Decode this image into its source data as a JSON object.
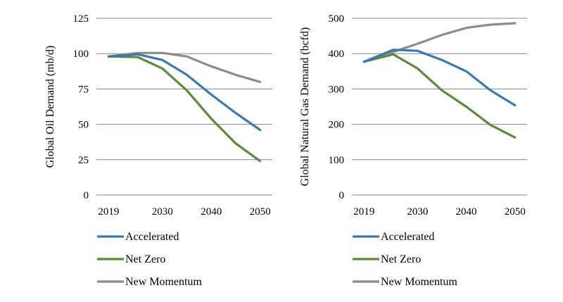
{
  "chart_data": [
    {
      "type": "line",
      "ylabel": "Global Oil Demand (mb/d)",
      "xlabel": "",
      "x": [
        2019,
        2025,
        2030,
        2035,
        2040,
        2045,
        2050
      ],
      "xticks": [
        "2019",
        "2030",
        "2040",
        "2050"
      ],
      "xtick_values": [
        2019,
        2030,
        2040,
        2050
      ],
      "xlim": [
        2016.5,
        2052.5
      ],
      "ylim": [
        0,
        125
      ],
      "yticks": [
        0,
        25,
        50,
        75,
        100,
        125
      ],
      "grid": "horizontal",
      "legend": "bottom",
      "series": [
        {
          "name": "Accelerated",
          "color": "#3C78B4",
          "values": [
            98,
            99.5,
            95.5,
            85,
            71,
            58,
            46
          ]
        },
        {
          "name": "Net Zero",
          "color": "#5B8A3A",
          "values": [
            98,
            97.5,
            89.5,
            74,
            54,
            36.5,
            24
          ]
        },
        {
          "name": "New Momentum",
          "color": "#8C8C8C",
          "values": [
            98,
            100.5,
            100.5,
            98,
            91,
            85,
            80
          ]
        }
      ]
    },
    {
      "type": "line",
      "ylabel": "Global Natural Gas Demand (bcfd)",
      "xlabel": "",
      "x": [
        2019,
        2025,
        2030,
        2035,
        2040,
        2045,
        2050
      ],
      "xticks": [
        "2019",
        "2030",
        "2040",
        "2050"
      ],
      "xtick_values": [
        2019,
        2030,
        2040,
        2050
      ],
      "xlim": [
        2016.5,
        2052.5
      ],
      "ylim": [
        0,
        500
      ],
      "yticks": [
        0,
        100,
        200,
        300,
        400,
        500
      ],
      "grid": "horizontal",
      "legend": "bottom",
      "series": [
        {
          "name": "Accelerated",
          "color": "#3C78B4",
          "values": [
            377,
            411,
            408,
            382,
            350,
            296,
            254
          ]
        },
        {
          "name": "Net Zero",
          "color": "#5B8A3A",
          "values": [
            377,
            398,
            358,
            296,
            250,
            198,
            163
          ]
        },
        {
          "name": "New Momentum",
          "color": "#8C8C8C",
          "values": [
            377,
            405,
            428,
            453,
            473,
            482,
            486
          ]
        }
      ]
    }
  ]
}
